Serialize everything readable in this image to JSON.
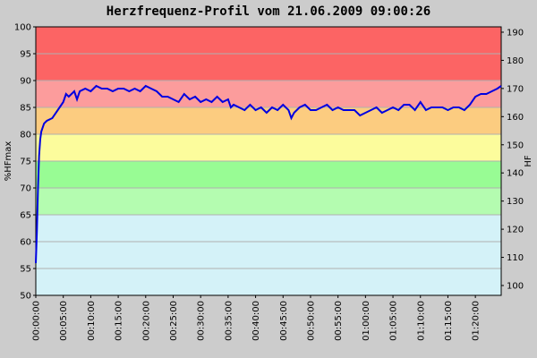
{
  "chart_data": {
    "type": "line",
    "title": "Herzfrequenz-Profil vom 21.06.2009 09:00:26",
    "y_label": "%HFmax",
    "y2_label": "HF",
    "zones": [
      {
        "from": 50,
        "to": 65,
        "color": "#d4f2f8"
      },
      {
        "from": 65,
        "to": 70,
        "color": "#b4fcb0"
      },
      {
        "from": 70,
        "to": 75,
        "color": "#98fc94"
      },
      {
        "from": 75,
        "to": 80,
        "color": "#fcfc9c"
      },
      {
        "from": 80,
        "to": 85,
        "color": "#fccc80"
      },
      {
        "from": 85,
        "to": 90,
        "color": "#fc9c9c"
      },
      {
        "from": 90,
        "to": 100,
        "color": "#fc6464"
      }
    ],
    "x": [
      0,
      0.2,
      0.4,
      0.6,
      0.8,
      1,
      1.5,
      2,
      3,
      4,
      5,
      5.5,
      6,
      7,
      7.5,
      8,
      9,
      10,
      11,
      12,
      13,
      14,
      15,
      16,
      17,
      18,
      19,
      20,
      21,
      22,
      23,
      24,
      25,
      26,
      27,
      28,
      29,
      30,
      31,
      32,
      33,
      34,
      35,
      35.5,
      36,
      37,
      38,
      39,
      40,
      41,
      42,
      43,
      44,
      45,
      46,
      46.5,
      47,
      48,
      49,
      50,
      51,
      52,
      53,
      54,
      55,
      56,
      57,
      58,
      59,
      60,
      61,
      62,
      63,
      64,
      65,
      66,
      67,
      68,
      69,
      70,
      71,
      72,
      73,
      74,
      75,
      76,
      77,
      78,
      79,
      80,
      81,
      82,
      83,
      84,
      84.7
    ],
    "series": [
      {
        "name": "%HFmax",
        "color": "#0000e0",
        "values": [
          56,
          62,
          70,
          76,
          79,
          80.5,
          82,
          82.5,
          83,
          84.5,
          86,
          87.5,
          87,
          88,
          86.5,
          88,
          88.5,
          88,
          89,
          88.5,
          88.5,
          88,
          88.5,
          88.5,
          88,
          88.5,
          88,
          89,
          88.5,
          88,
          87,
          87,
          86.5,
          86,
          87.5,
          86.5,
          87,
          86,
          86.5,
          86,
          87,
          86,
          86.5,
          85,
          85.5,
          85,
          84.5,
          85.5,
          84.5,
          85,
          84,
          85,
          84.5,
          85.5,
          84.5,
          83,
          84,
          85,
          85.5,
          84.5,
          84.5,
          85,
          85.5,
          84.5,
          85,
          84.5,
          84.5,
          84.5,
          83.5,
          84,
          84.5,
          85,
          84,
          84.5,
          85,
          84.5,
          85.5,
          85.5,
          84.5,
          86,
          84.5,
          85,
          85,
          85,
          84.5,
          85,
          85,
          84.5,
          85.5,
          87,
          87.5,
          87.5,
          88,
          88.5,
          89
        ]
      }
    ],
    "xlim": [
      0,
      84.7
    ],
    "xticks": [
      {
        "value": 0,
        "label": "00:00:00"
      },
      {
        "value": 5,
        "label": "00:05:00"
      },
      {
        "value": 10,
        "label": "00:10:00"
      },
      {
        "value": 15,
        "label": "00:15:00"
      },
      {
        "value": 20,
        "label": "00:20:00"
      },
      {
        "value": 25,
        "label": "00:25:00"
      },
      {
        "value": 30,
        "label": "00:30:00"
      },
      {
        "value": 35,
        "label": "00:35:00"
      },
      {
        "value": 40,
        "label": "00:40:00"
      },
      {
        "value": 45,
        "label": "00:45:00"
      },
      {
        "value": 50,
        "label": "00:50:00"
      },
      {
        "value": 55,
        "label": "00:55:00"
      },
      {
        "value": 60,
        "label": "01:00:00"
      },
      {
        "value": 65,
        "label": "01:05:00"
      },
      {
        "value": 70,
        "label": "01:10:00"
      },
      {
        "value": 75,
        "label": "01:15:00"
      },
      {
        "value": 80,
        "label": "01:20:00"
      }
    ],
    "ylim": [
      50,
      100
    ],
    "yticks": [
      50,
      55,
      60,
      65,
      70,
      75,
      80,
      85,
      90,
      95,
      100
    ],
    "y2lim": [
      96.5,
      191.9
    ],
    "y2ticks": [
      100,
      110,
      120,
      130,
      140,
      150,
      160,
      170,
      180,
      190
    ],
    "grid": true
  }
}
